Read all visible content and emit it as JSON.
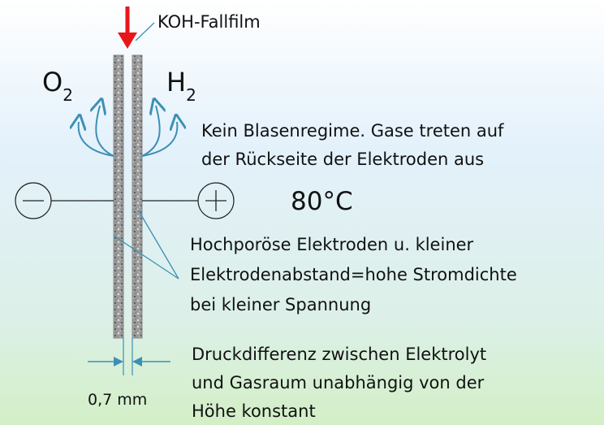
{
  "labels": {
    "feed": "KOH-Fallfilm",
    "anode_gas": {
      "main": "O",
      "sub": "2"
    },
    "cathode_gas": {
      "main": "H",
      "sub": "2"
    },
    "no_bubbles": [
      "Kein Blasenregime. Gase treten auf",
      "der Rückseite der Elektroden aus"
    ],
    "temperature": "80°C",
    "electrodes": [
      "Hochporöse Elektroden u. kleiner",
      "Elektrodenabstand=hohe Stromdichte",
      "bei kleiner Spannung"
    ],
    "pressure": [
      "Druckdifferenz zwischen Elektrolyt",
      "und Gasraum unabhängig von der",
      "Höhe konstant"
    ],
    "gap": "0,7 mm"
  }
}
